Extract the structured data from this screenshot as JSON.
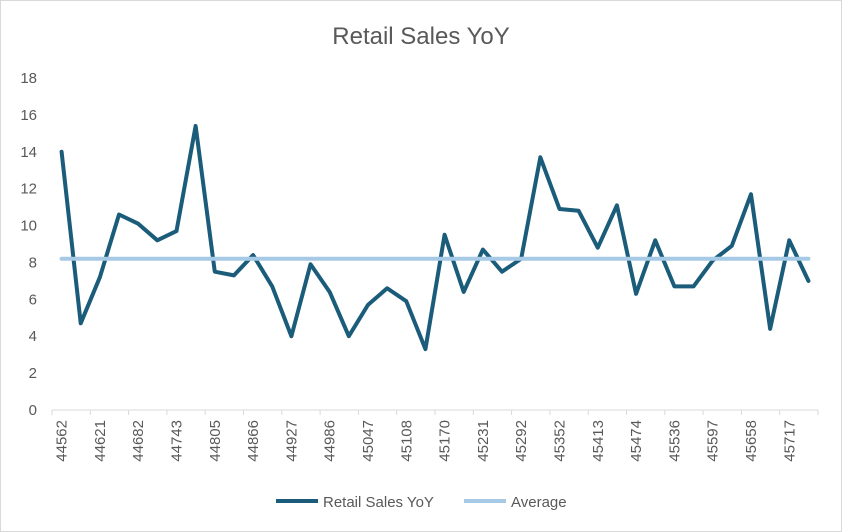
{
  "chart_data": {
    "type": "line",
    "title": "Retail Sales YoY",
    "xlabel": "",
    "ylabel": "",
    "ylim": [
      0,
      18
    ],
    "yticks": [
      0,
      2,
      4,
      6,
      8,
      10,
      12,
      14,
      16,
      18
    ],
    "x_tick_labels": [
      "44562",
      "44621",
      "44682",
      "44743",
      "44805",
      "44866",
      "44927",
      "44986",
      "45047",
      "45108",
      "45170",
      "45231",
      "45292",
      "45352",
      "45413",
      "45474",
      "45536",
      "45597",
      "45658",
      "45717"
    ],
    "grid": false,
    "legend_position": "bottom",
    "colors": {
      "retail": "#1a5c7a",
      "average": "#a6c9e6",
      "axis": "#d9d9d9"
    },
    "series": [
      {
        "name": "Retail Sales YoY",
        "values": [
          14.0,
          4.7,
          7.2,
          10.6,
          10.1,
          9.2,
          9.7,
          15.4,
          7.5,
          7.3,
          8.4,
          6.7,
          4.0,
          7.9,
          6.4,
          4.0,
          5.7,
          6.6,
          5.9,
          3.3,
          9.5,
          6.4,
          8.7,
          7.5,
          8.2,
          13.7,
          10.9,
          10.8,
          8.8,
          11.1,
          6.3,
          9.2,
          6.7,
          6.7,
          8.1,
          8.9,
          11.7,
          4.4,
          9.2,
          7.0
        ]
      },
      {
        "name": "Average",
        "values": [
          8.2,
          8.2,
          8.2,
          8.2,
          8.2,
          8.2,
          8.2,
          8.2,
          8.2,
          8.2,
          8.2,
          8.2,
          8.2,
          8.2,
          8.2,
          8.2,
          8.2,
          8.2,
          8.2,
          8.2,
          8.2,
          8.2,
          8.2,
          8.2,
          8.2,
          8.2,
          8.2,
          8.2,
          8.2,
          8.2,
          8.2,
          8.2,
          8.2,
          8.2,
          8.2,
          8.2,
          8.2,
          8.2,
          8.2,
          8.2
        ]
      }
    ]
  }
}
